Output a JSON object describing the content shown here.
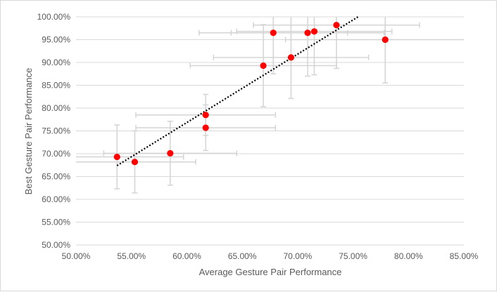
{
  "chart_data": {
    "type": "scatter",
    "title": "",
    "xlabel": "Average Gesture Pair Performance",
    "ylabel": "Best Gesture Pair Performance",
    "xlim": [
      0.5,
      0.85
    ],
    "ylim": [
      0.5,
      1.0
    ],
    "x_ticks": [
      "50.00%",
      "55.00%",
      "60.00%",
      "65.00%",
      "70.00%",
      "75.00%",
      "80.00%",
      "85.00%"
    ],
    "y_ticks": [
      "50.00%",
      "55.00%",
      "60.00%",
      "65.00%",
      "70.00%",
      "75.00%",
      "80.00%",
      "85.00%",
      "90.00%",
      "95.00%",
      "100.00%"
    ],
    "grid": "horizontal",
    "point_color": "#ff0000",
    "error_bar_color": "#d4d4d4",
    "trendline": {
      "type": "linear",
      "style": "dotted",
      "color": "#000000",
      "x_start": 0.537,
      "x_end": 0.757
    },
    "points": [
      {
        "x": 0.537,
        "y": 0.693,
        "x_err": 0.06,
        "y_err": 0.07
      },
      {
        "x": 0.553,
        "y": 0.682,
        "x_err": 0.055,
        "y_err": 0.068
      },
      {
        "x": 0.585,
        "y": 0.701,
        "x_err": 0.06,
        "y_err": 0.07
      },
      {
        "x": 0.617,
        "y": 0.785,
        "x_err": 0.063,
        "y_err": 0.045
      },
      {
        "x": 0.617,
        "y": 0.757,
        "x_err": 0.063,
        "y_err": 0.05
      },
      {
        "x": 0.669,
        "y": 0.893,
        "x_err": 0.066,
        "y_err": 0.09
      },
      {
        "x": 0.678,
        "y": 0.965,
        "x_err": 0.067,
        "y_err": 0.09
      },
      {
        "x": 0.694,
        "y": 0.911,
        "x_err": 0.07,
        "y_err": 0.09
      },
      {
        "x": 0.709,
        "y": 0.965,
        "x_err": 0.069,
        "y_err": 0.095
      },
      {
        "x": 0.715,
        "y": 0.968,
        "x_err": 0.07,
        "y_err": 0.095
      },
      {
        "x": 0.735,
        "y": 0.982,
        "x_err": 0.075,
        "y_err": 0.095
      },
      {
        "x": 0.779,
        "y": 0.95,
        "x_err": 0.09,
        "y_err": 0.095
      }
    ]
  }
}
